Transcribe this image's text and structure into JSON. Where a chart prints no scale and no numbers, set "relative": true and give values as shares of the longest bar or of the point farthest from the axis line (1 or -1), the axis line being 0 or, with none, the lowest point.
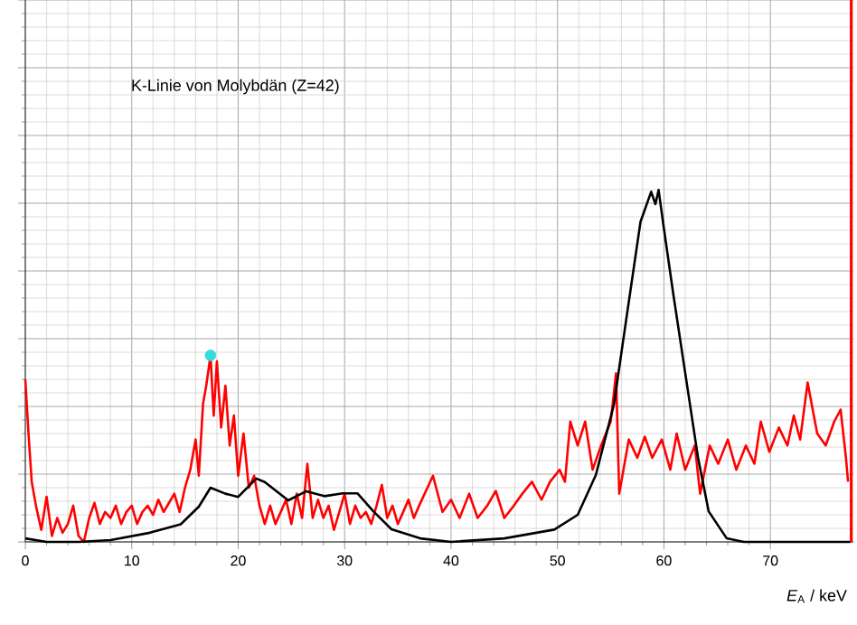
{
  "chart_data": {
    "type": "line",
    "relative": true,
    "xlabel": "*E*$_{A}$ / keV",
    "annotations": [
      "K-Linie von Molybdän (Z=42)"
    ],
    "xlim": [
      0,
      77.8
    ],
    "xticks": [
      0,
      10,
      20,
      30,
      40,
      50,
      60,
      70
    ],
    "grid": true,
    "line_style": "solid",
    "series": [
      {
        "color": "#ff0000",
        "x": [
          0,
          0.3,
          0.6,
          1,
          1.5,
          2,
          2.5,
          3,
          3.5,
          4,
          4.5,
          5,
          5.5,
          6,
          6.5,
          7,
          7.5,
          8,
          8.5,
          9,
          9.5,
          10,
          10.5,
          11,
          11.5,
          12,
          12.5,
          13,
          13.5,
          14,
          14.5,
          15,
          15.5,
          16,
          16.3,
          16.7,
          17,
          17.4,
          17.7,
          18,
          18.4,
          18.8,
          19.2,
          19.6,
          20,
          20.5,
          21,
          21.5,
          22,
          22.5,
          23,
          23.5,
          24,
          24.5,
          25,
          25.5,
          26,
          26.5,
          27,
          27.5,
          28,
          28.5,
          29,
          29.5,
          30,
          30.5,
          31,
          31.5,
          32,
          32.5,
          33,
          33.5,
          34,
          34.5,
          35,
          35.5,
          36,
          36.5,
          37,
          38.3,
          39.2,
          40,
          40.8,
          41.7,
          42.5,
          43.4,
          44.2,
          45,
          45.9,
          46.7,
          47.6,
          48.5,
          49.3,
          50.2,
          50.7,
          51.2,
          51.9,
          52.6,
          53.3,
          54.1,
          55,
          55.5,
          55.8,
          56.7,
          57.5,
          58.2,
          58.9,
          59.8,
          60.6,
          61.2,
          62,
          62.9,
          63.4,
          64.3,
          65.1,
          66,
          66.8,
          67.7,
          68.5,
          69.1,
          69.9,
          70.8,
          71.6,
          72.2,
          72.8,
          73.5,
          74.4,
          75.2,
          76,
          76.6,
          77.1,
          77.3
        ],
        "values": [
          0.462,
          0.308,
          0.171,
          0.103,
          0.034,
          0.128,
          0.017,
          0.068,
          0.026,
          0.051,
          0.103,
          0.017,
          0,
          0.068,
          0.111,
          0.051,
          0.085,
          0.068,
          0.103,
          0.051,
          0.085,
          0.103,
          0.051,
          0.085,
          0.103,
          0.077,
          0.12,
          0.085,
          0.111,
          0.137,
          0.085,
          0.154,
          0.205,
          0.291,
          0.188,
          0.393,
          0.444,
          0.53,
          0.359,
          0.513,
          0.325,
          0.444,
          0.274,
          0.359,
          0.188,
          0.308,
          0.154,
          0.188,
          0.103,
          0.051,
          0.103,
          0.051,
          0.085,
          0.12,
          0.051,
          0.137,
          0.068,
          0.222,
          0.068,
          0.12,
          0.068,
          0.103,
          0.034,
          0.085,
          0.137,
          0.051,
          0.103,
          0.068,
          0.085,
          0.051,
          0.103,
          0.162,
          0.068,
          0.103,
          0.051,
          0.085,
          0.12,
          0.068,
          0.103,
          0.188,
          0.085,
          0.12,
          0.068,
          0.137,
          0.068,
          0.103,
          0.145,
          0.068,
          0.103,
          0.137,
          0.171,
          0.12,
          0.171,
          0.205,
          0.171,
          0.342,
          0.274,
          0.342,
          0.205,
          0.274,
          0.342,
          0.479,
          0.137,
          0.291,
          0.239,
          0.299,
          0.239,
          0.291,
          0.205,
          0.308,
          0.205,
          0.274,
          0.137,
          0.274,
          0.222,
          0.291,
          0.205,
          0.274,
          0.222,
          0.342,
          0.256,
          0.325,
          0.274,
          0.359,
          0.291,
          0.453,
          0.308,
          0.274,
          0.342,
          0.376,
          0.239,
          0.171
        ]
      },
      {
        "color": "#000000",
        "x": [
          0,
          2,
          5,
          8,
          11.7,
          14.6,
          16.3,
          17.4,
          18.8,
          20,
          21.7,
          22.5,
          24.7,
          26.4,
          28.1,
          29.8,
          31.2,
          32.7,
          34.4,
          37.1,
          40,
          45,
          49.7,
          51.9,
          53.6,
          55.3,
          56.4,
          57.8,
          58.8,
          59.2,
          59.5,
          60,
          60.9,
          62,
          63.2,
          64.2,
          65.9,
          67.5,
          72,
          77.5
        ],
        "values": [
          0.01,
          0,
          0,
          0.005,
          0.026,
          0.05,
          0.1,
          0.154,
          0.137,
          0.128,
          0.18,
          0.17,
          0.118,
          0.144,
          0.13,
          0.138,
          0.138,
          0.087,
          0.036,
          0.01,
          0,
          0.01,
          0.035,
          0.077,
          0.19,
          0.39,
          0.62,
          0.91,
          0.995,
          0.96,
          1,
          0.89,
          0.7,
          0.48,
          0.24,
          0.087,
          0.01,
          0,
          0,
          0
        ]
      },
      {
        "type": "scatter",
        "marker": "circle",
        "color": "#33dddd",
        "x": [
          17.4
        ],
        "values": [
          0.53
        ]
      }
    ],
    "ref_lines": [
      {
        "axis": "x",
        "value": 77.6,
        "color": "#ff0000"
      }
    ]
  }
}
